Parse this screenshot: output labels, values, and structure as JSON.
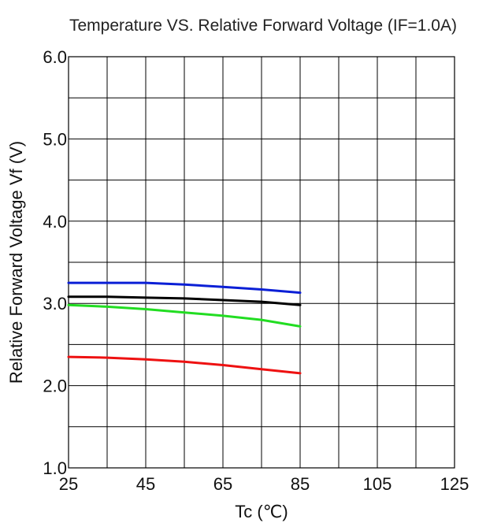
{
  "chart_data": {
    "type": "line",
    "title": "Temperature VS.  Relative Forward  Voltage (IF=1.0A)",
    "xlabel": "Tc (℃)",
    "ylabel": "Relative Forward  Voltage  Vf  (V)",
    "xlim": [
      25,
      125
    ],
    "ylim": [
      1.0,
      6.0
    ],
    "x_ticks": [
      "25",
      "45",
      "65",
      "85",
      "105",
      "125"
    ],
    "y_ticks": [
      "1.0",
      "2.0",
      "3.0",
      "4.0",
      "5.0",
      "6.0"
    ],
    "grid": true,
    "x": [
      25,
      35,
      45,
      55,
      65,
      75,
      85
    ],
    "series": [
      {
        "color": "#0a1fd6",
        "values": [
          3.25,
          3.25,
          3.25,
          3.23,
          3.2,
          3.17,
          3.13
        ]
      },
      {
        "color": "#000000",
        "values": [
          3.08,
          3.08,
          3.07,
          3.06,
          3.04,
          3.02,
          2.98
        ]
      },
      {
        "color": "#22dd22",
        "values": [
          2.98,
          2.96,
          2.93,
          2.89,
          2.85,
          2.8,
          2.72
        ]
      },
      {
        "color": "#ee1111",
        "values": [
          2.35,
          2.34,
          2.32,
          2.29,
          2.25,
          2.2,
          2.15
        ]
      }
    ]
  }
}
